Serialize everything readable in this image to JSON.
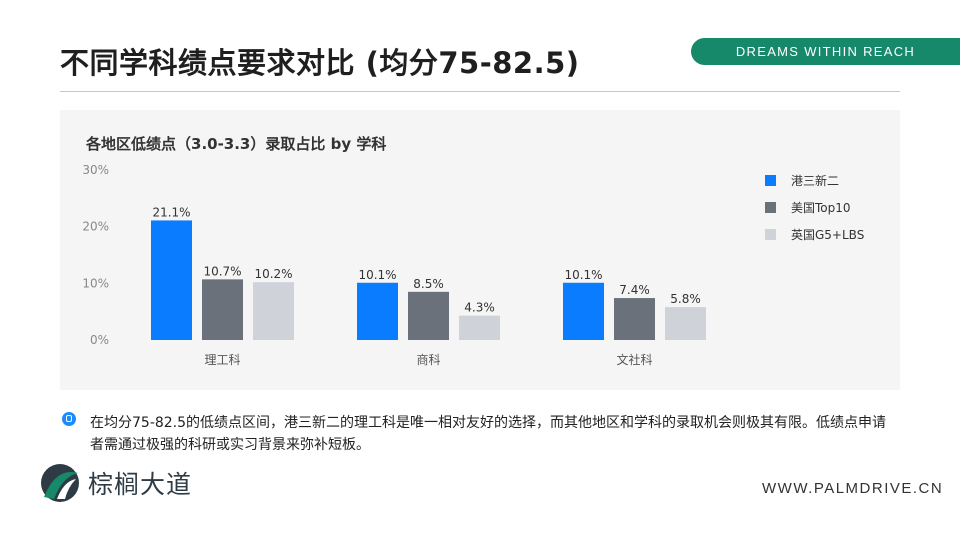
{
  "slide": {
    "title": "不同学科绩点要求对比 (均分75-82.5)",
    "brand_tagline": "DREAMS WITHIN REACH",
    "logo_name": "棕榈大道",
    "website": "WWW.PALMDRIVE.CN",
    "note": "在均分75-82.5的低绩点区间，港三新二的理工科是唯一相对友好的选择，而其他地区和学科的录取机会则极其有限。低绩点申请者需通过极强的科研或实习背景来弥补短板。",
    "colors": {
      "brand_green": "#16896a",
      "accent_blue": "#0a7cff"
    }
  },
  "chart_data": {
    "type": "bar",
    "title": "各地区低绩点（3.0-3.3）录取占比 by 学科",
    "categories": [
      "理工科",
      "商科",
      "文社科"
    ],
    "series": [
      {
        "name": "港三新二",
        "values": [
          21.1,
          10.1,
          10.1
        ],
        "color": "#0a7cff"
      },
      {
        "name": "美国Top10",
        "values": [
          10.7,
          8.5,
          7.4
        ],
        "color": "#6b717a"
      },
      {
        "name": "英国G5+LBS",
        "values": [
          10.2,
          4.3,
          5.8
        ],
        "color": "#cfd3d9"
      }
    ],
    "value_labels": [
      [
        "21.1%",
        "10.1%",
        "10.1%"
      ],
      [
        "10.7%",
        "8.5%",
        "7.4%"
      ],
      [
        "10.2%",
        "4.3%",
        "5.8%"
      ]
    ],
    "y_ticks": [
      "0%",
      "10%",
      "20%",
      "30%"
    ],
    "ylim": [
      0,
      30
    ],
    "grid": false,
    "legend": "right"
  }
}
